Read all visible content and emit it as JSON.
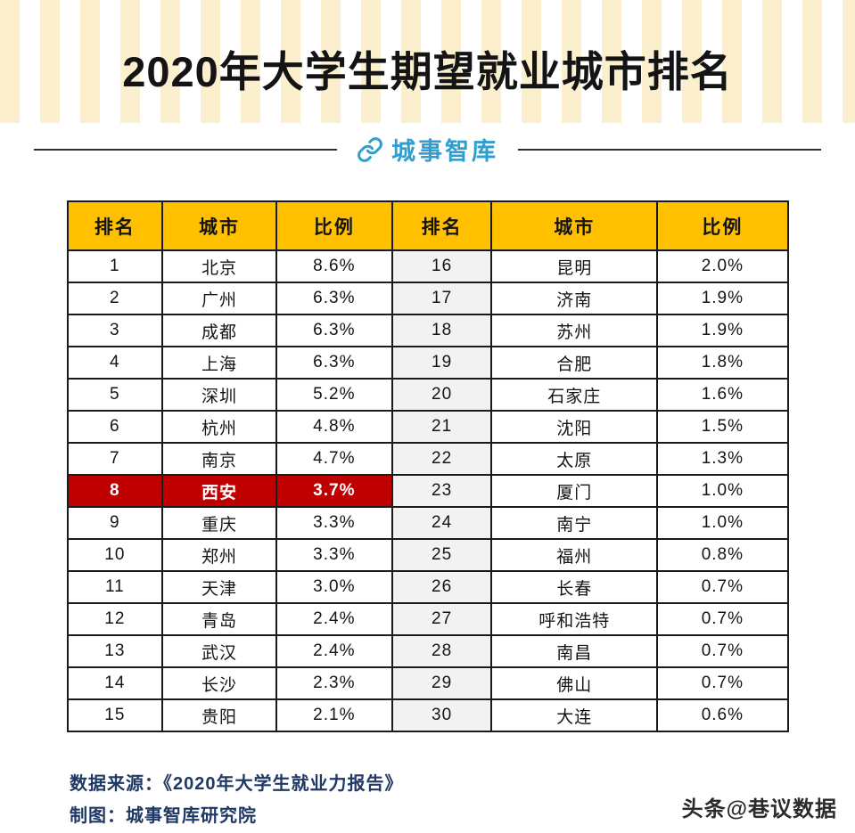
{
  "title": "2020年大学生期望就业城市排名",
  "logo": {
    "text": "城事智库"
  },
  "table": {
    "headers": [
      "排名",
      "城市",
      "比例",
      "排名",
      "城市",
      "比例"
    ]
  },
  "chart_data": {
    "type": "table",
    "title": "2020年大学生期望就业城市排名",
    "columns": [
      "排名",
      "城市",
      "比例"
    ],
    "rows": [
      [
        1,
        "北京",
        "8.6%"
      ],
      [
        2,
        "广州",
        "6.3%"
      ],
      [
        3,
        "成都",
        "6.3%"
      ],
      [
        4,
        "上海",
        "6.3%"
      ],
      [
        5,
        "深圳",
        "5.2%"
      ],
      [
        6,
        "杭州",
        "4.8%"
      ],
      [
        7,
        "南京",
        "4.7%"
      ],
      [
        8,
        "西安",
        "3.7%"
      ],
      [
        9,
        "重庆",
        "3.3%"
      ],
      [
        10,
        "郑州",
        "3.3%"
      ],
      [
        11,
        "天津",
        "3.0%"
      ],
      [
        12,
        "青岛",
        "2.4%"
      ],
      [
        13,
        "武汉",
        "2.4%"
      ],
      [
        14,
        "长沙",
        "2.3%"
      ],
      [
        15,
        "贵阳",
        "2.1%"
      ],
      [
        16,
        "昆明",
        "2.0%"
      ],
      [
        17,
        "济南",
        "1.9%"
      ],
      [
        18,
        "苏州",
        "1.9%"
      ],
      [
        19,
        "合肥",
        "1.8%"
      ],
      [
        20,
        "石家庄",
        "1.6%"
      ],
      [
        21,
        "沈阳",
        "1.5%"
      ],
      [
        22,
        "太原",
        "1.3%"
      ],
      [
        23,
        "厦门",
        "1.0%"
      ],
      [
        24,
        "南宁",
        "1.0%"
      ],
      [
        25,
        "福州",
        "0.8%"
      ],
      [
        26,
        "长春",
        "0.7%"
      ],
      [
        27,
        "呼和浩特",
        "0.7%"
      ],
      [
        28,
        "南昌",
        "0.7%"
      ],
      [
        29,
        "佛山",
        "0.7%"
      ],
      [
        30,
        "大连",
        "0.6%"
      ]
    ],
    "highlighted_row_rank": 8,
    "layout": "two-column table: ranks 1-15 in left half, ranks 16-30 in right half; legend/grid: full black cell borders"
  },
  "colors": {
    "header_bg": "#FFC000",
    "highlight_bg": "#C00000",
    "highlight_text": "#FFFFFF",
    "stripe": "#FBEFCD",
    "logo_blue": "#2E9FD0",
    "footer_navy": "#1F3864",
    "border": "#1A1A1A"
  },
  "footer": {
    "source": "数据来源：《2020年大学生就业力报告》",
    "credit": "制图：城事智库研究院"
  },
  "watermark": "头条@巷议数据"
}
